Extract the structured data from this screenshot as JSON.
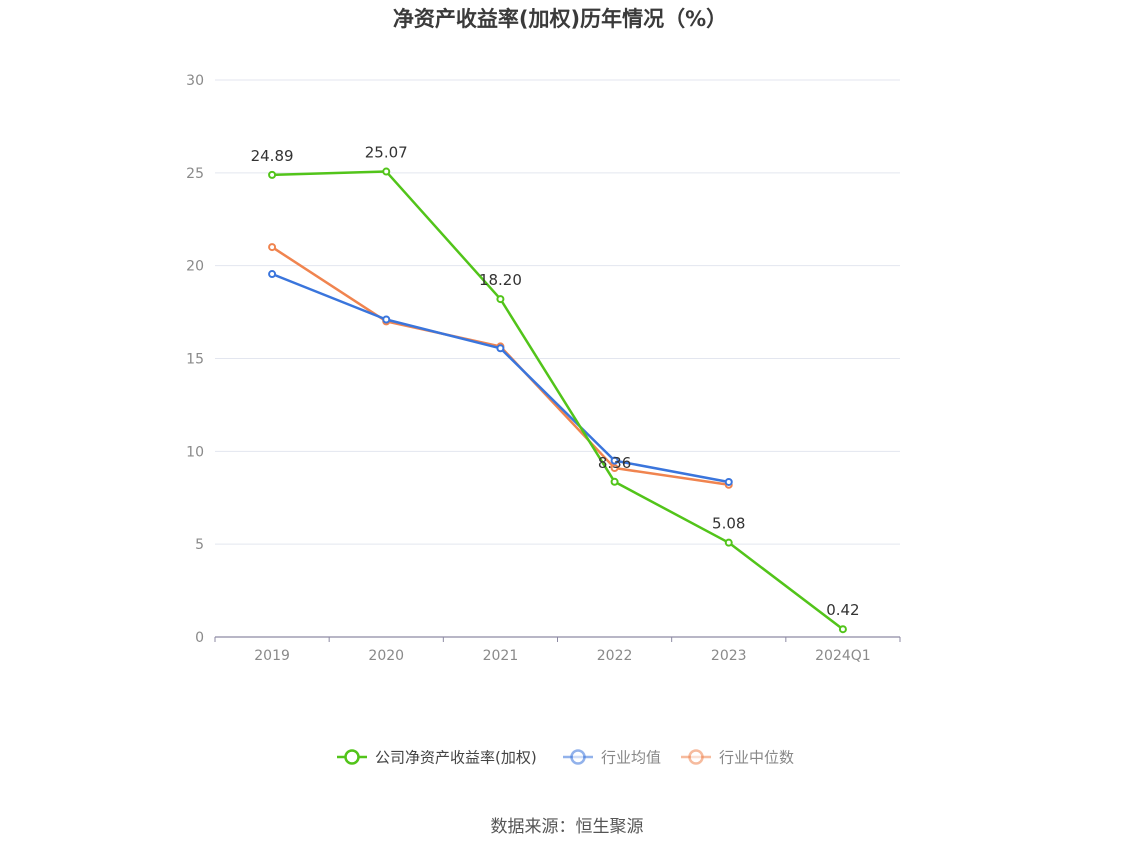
{
  "title": "净资产收益率(加权)历年情况（%）",
  "source": "数据来源：恒生聚源",
  "chart_data": {
    "type": "line",
    "title": "净资产收益率(加权)历年情况（%）",
    "categories": [
      "2019",
      "2020",
      "2021",
      "2022",
      "2023",
      "2024Q1"
    ],
    "ylim": [
      0,
      30
    ],
    "yticks": [
      0,
      5,
      10,
      15,
      20,
      25,
      30
    ],
    "grid": true,
    "legend_position": "bottom",
    "series": [
      {
        "name": "公司净资产收益率(加权)",
        "color": "#52c41a",
        "values": [
          24.89,
          25.07,
          18.2,
          8.36,
          5.08,
          0.42
        ],
        "labels": [
          "24.89",
          "25.07",
          "18.20",
          "8.36",
          "5.08",
          "0.42"
        ]
      },
      {
        "name": "行业均值",
        "color": "#3a75dc",
        "values": [
          19.55,
          17.1,
          15.55,
          9.5,
          8.35,
          null
        ]
      },
      {
        "name": "行业中位数",
        "color": "#f0844f",
        "values": [
          21.0,
          17.0,
          15.65,
          9.1,
          8.2,
          null
        ]
      }
    ]
  }
}
